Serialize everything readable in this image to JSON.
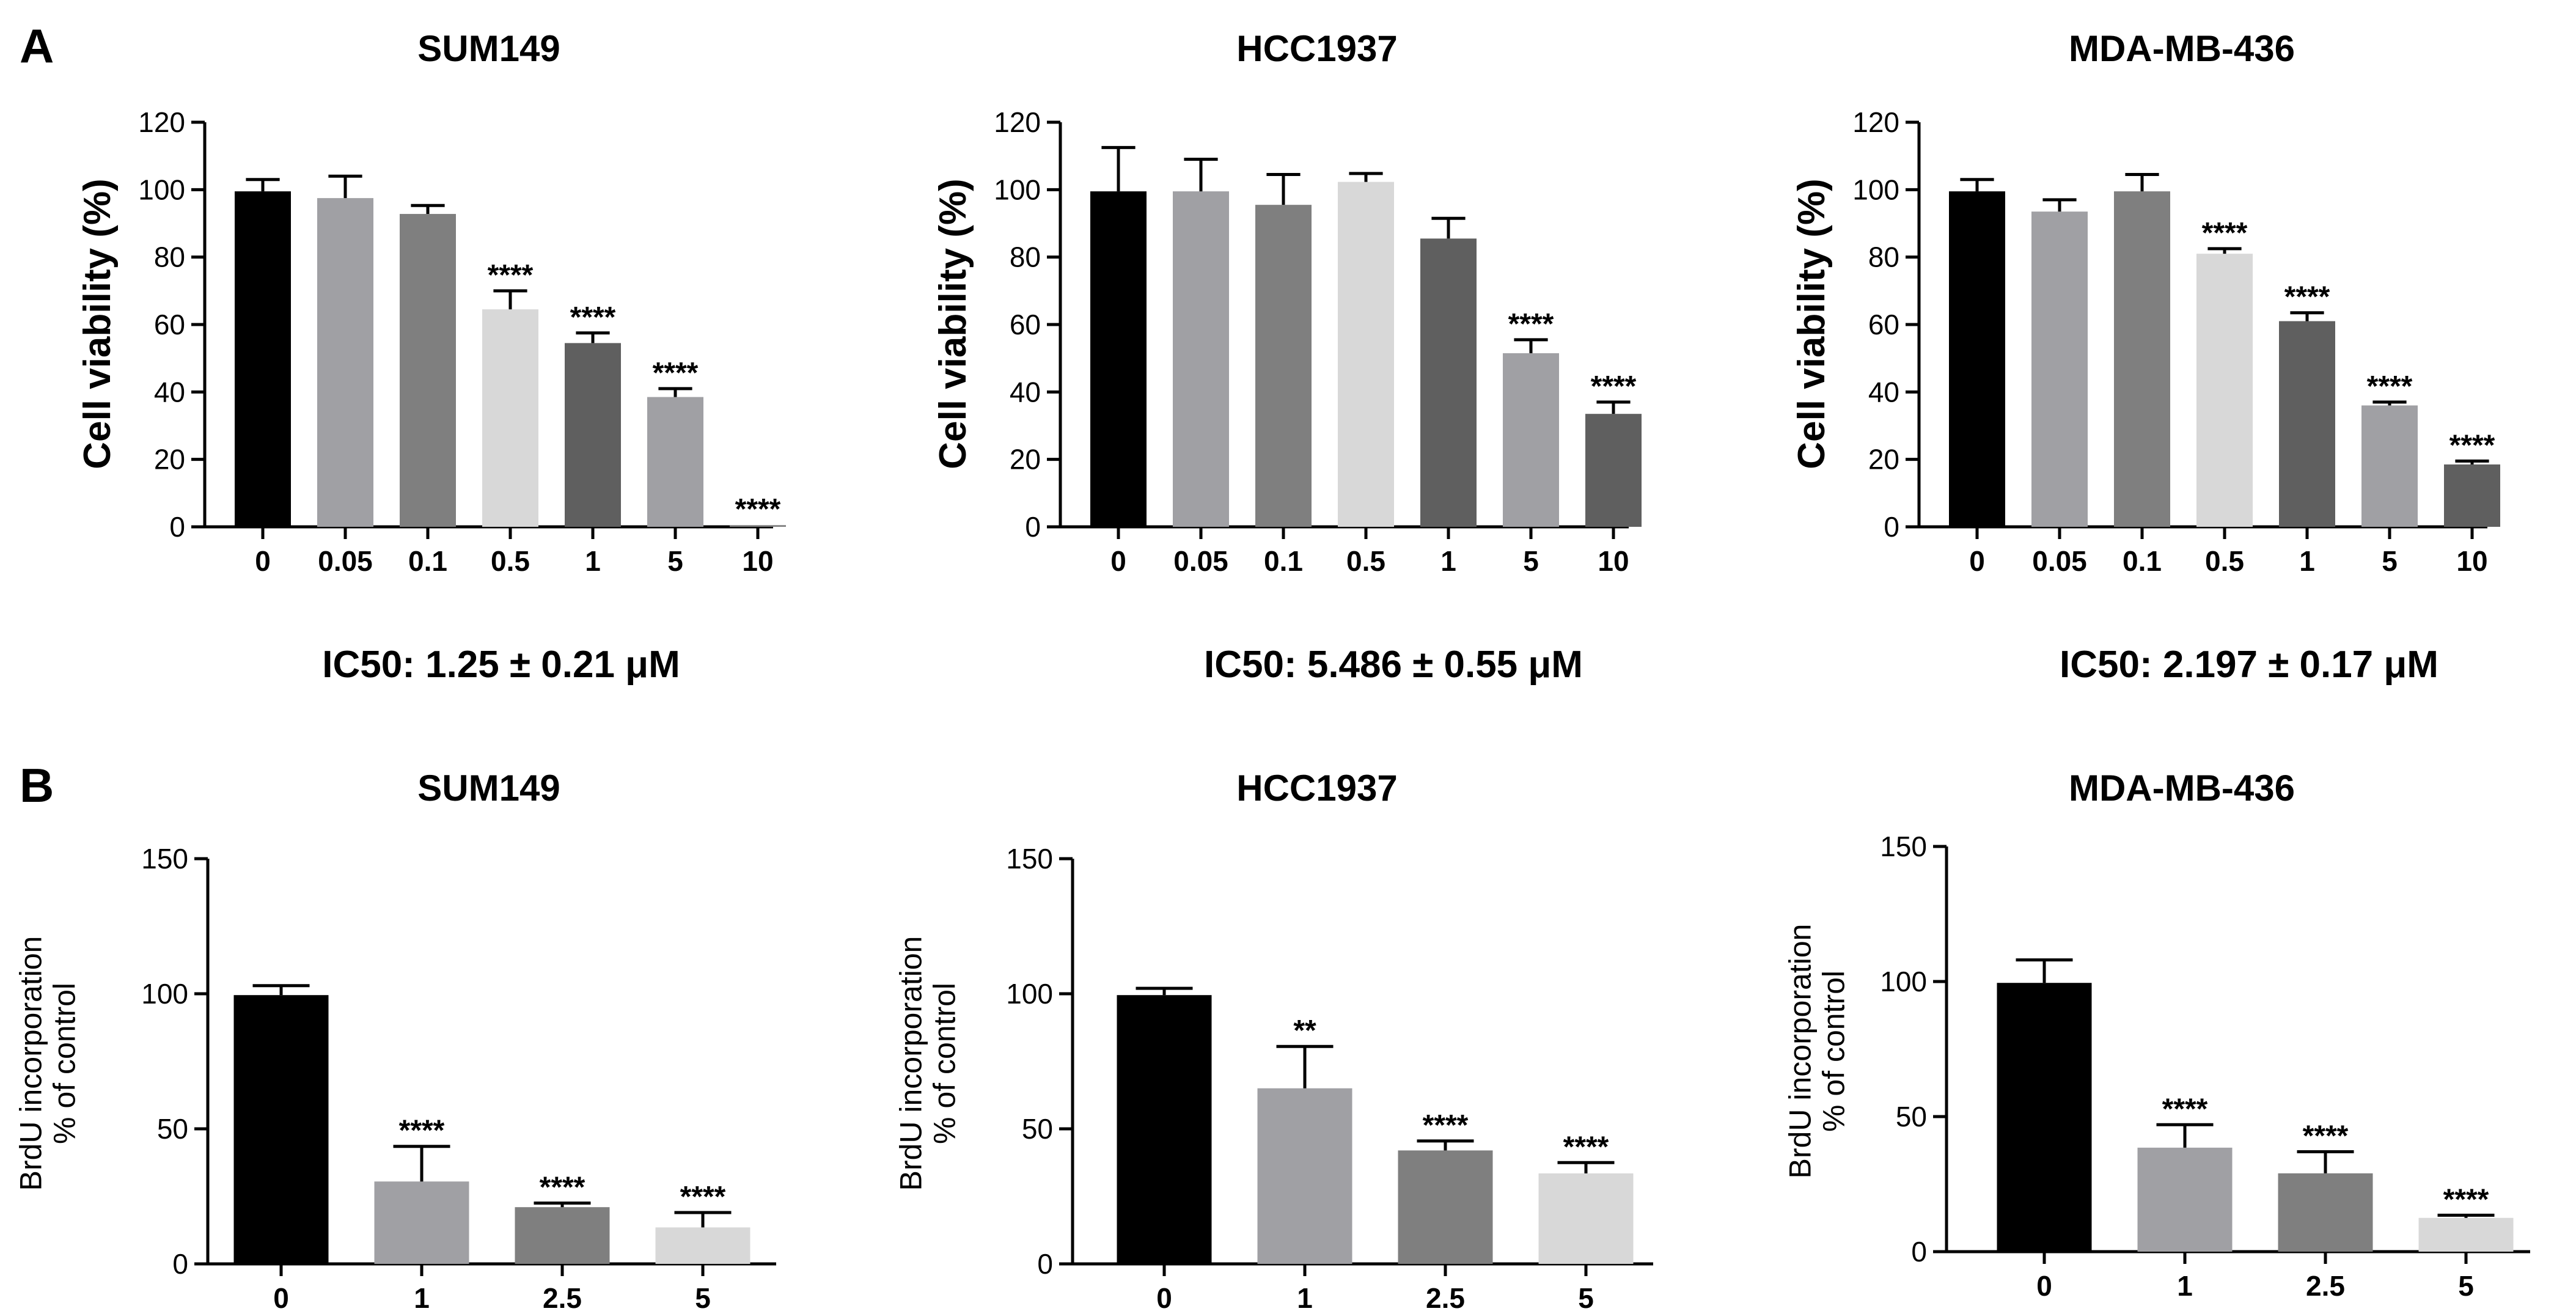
{
  "figure": {
    "panel_a_letter": "A",
    "panel_b_letter": "B",
    "ic50_labels": [
      "IC50: 1.25 ± 0.21 μM",
      "IC50: 5.486 ± 0.55 μM",
      "IC50: 2.197 ± 0.17 μM"
    ]
  },
  "colors": {
    "black": "#000000",
    "mid_gray": "#a0a0a4",
    "dark_gray": "#7f7f7f",
    "light_gray": "#d8d8d8",
    "darker_gray": "#5f5f5f"
  },
  "chart_data": [
    {
      "panel": "A",
      "type": "bar",
      "title": "SUM149",
      "xlabel": "",
      "ylabel": "Cell viability (%)",
      "ylim": [
        0,
        120
      ],
      "yticks": [
        0,
        20,
        40,
        60,
        80,
        100,
        120
      ],
      "categories": [
        "0",
        "0.05",
        "0.1",
        "0.5",
        "1",
        "5",
        "10"
      ],
      "values": [
        99.5,
        97.5,
        92.8,
        64.5,
        54.5,
        38.5,
        0.5
      ],
      "errors": [
        3.5,
        6.5,
        2.5,
        5.5,
        3.0,
        2.5,
        0
      ],
      "significance": [
        "",
        "",
        "",
        "****",
        "****",
        "****",
        "****"
      ],
      "bar_colors": [
        "#000000",
        "#a0a0a4",
        "#7f7f7f",
        "#d8d8d8",
        "#5f5f5f",
        "#a0a0a4",
        "#7f7f7f"
      ]
    },
    {
      "panel": "A",
      "type": "bar",
      "title": "HCC1937",
      "xlabel": "",
      "ylabel": "Cell viability (%)",
      "ylim": [
        0,
        120
      ],
      "yticks": [
        0,
        20,
        40,
        60,
        80,
        100,
        120
      ],
      "categories": [
        "0",
        "0.05",
        "0.1",
        "0.5",
        "1",
        "5",
        "10"
      ],
      "values": [
        99.5,
        99.5,
        95.5,
        102.3,
        85.5,
        51.5,
        33.5
      ],
      "errors": [
        13,
        9.5,
        9,
        2.5,
        6,
        4,
        3.5
      ],
      "significance": [
        "",
        "",
        "",
        "",
        "",
        "****",
        "****"
      ],
      "bar_colors": [
        "#000000",
        "#a0a0a4",
        "#7f7f7f",
        "#d8d8d8",
        "#5f5f5f",
        "#a0a0a4",
        "#5f5f5f"
      ]
    },
    {
      "panel": "A",
      "type": "bar",
      "title": "MDA-MB-436",
      "xlabel": "",
      "ylabel": "Cell viability (%)",
      "ylim": [
        0,
        120
      ],
      "yticks": [
        0,
        20,
        40,
        60,
        80,
        100,
        120
      ],
      "categories": [
        "0",
        "0.05",
        "0.1",
        "0.5",
        "1",
        "5",
        "10"
      ],
      "values": [
        99.5,
        93.5,
        99.5,
        81,
        61,
        36,
        18.5
      ],
      "errors": [
        3.5,
        3.5,
        5,
        1.5,
        2.5,
        1,
        1
      ],
      "significance": [
        "",
        "",
        "",
        "****",
        "****",
        "****",
        "****"
      ],
      "bar_colors": [
        "#000000",
        "#a0a0a4",
        "#7f7f7f",
        "#d8d8d8",
        "#5f5f5f",
        "#a0a0a4",
        "#5f5f5f"
      ]
    },
    {
      "panel": "B",
      "type": "bar",
      "title": "SUM149",
      "xlabel": "",
      "ylabel": "BrdU incorporation\n% of control",
      "ylim": [
        0,
        150
      ],
      "yticks": [
        0,
        50,
        100,
        150
      ],
      "categories": [
        "0",
        "1",
        "2.5",
        "5"
      ],
      "values": [
        99.5,
        30.5,
        21,
        13.5
      ],
      "errors": [
        3.5,
        13,
        1.5,
        5.5
      ],
      "significance": [
        "",
        "****",
        "****",
        "****"
      ],
      "bar_colors": [
        "#000000",
        "#a0a0a4",
        "#7f7f7f",
        "#d8d8d8"
      ]
    },
    {
      "panel": "B",
      "type": "bar",
      "title": "HCC1937",
      "xlabel": "",
      "ylabel": "BrdU incorporation\n% of control",
      "ylim": [
        0,
        150
      ],
      "yticks": [
        0,
        50,
        100,
        150
      ],
      "categories": [
        "0",
        "1",
        "2.5",
        "5"
      ],
      "values": [
        99.5,
        65,
        42,
        33.5
      ],
      "errors": [
        2.5,
        15.5,
        3.5,
        4
      ],
      "significance": [
        "",
        "**",
        "****",
        "****"
      ],
      "bar_colors": [
        "#000000",
        "#a0a0a4",
        "#7f7f7f",
        "#d8d8d8"
      ]
    },
    {
      "panel": "B",
      "type": "bar",
      "title": "MDA-MB-436",
      "xlabel": "",
      "ylabel": "BrdU incorporation\n% of control",
      "ylim": [
        0,
        150
      ],
      "yticks": [
        0,
        50,
        100,
        150
      ],
      "categories": [
        "0",
        "1",
        "2.5",
        "5"
      ],
      "values": [
        99.5,
        38.5,
        29,
        12.5
      ],
      "errors": [
        8.5,
        8.5,
        8,
        1
      ],
      "significance": [
        "",
        "****",
        "****",
        "****"
      ],
      "bar_colors": [
        "#000000",
        "#a0a0a4",
        "#7f7f7f",
        "#d8d8d8"
      ]
    }
  ]
}
